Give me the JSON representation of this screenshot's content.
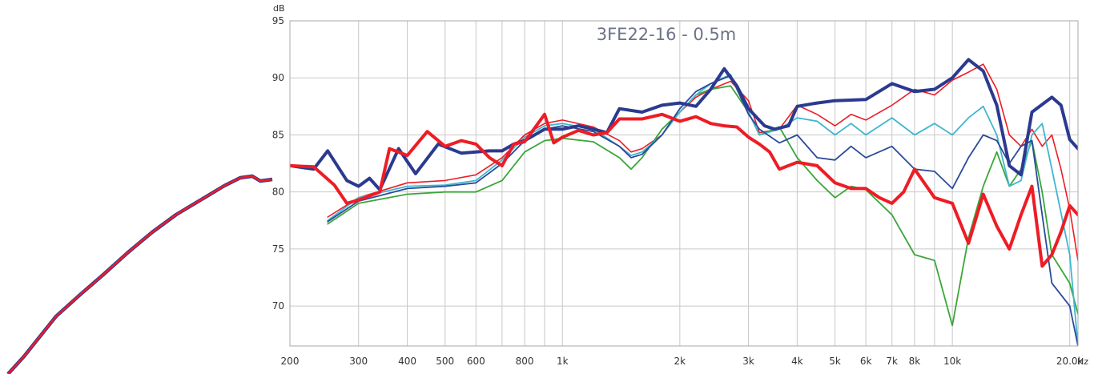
{
  "chart_data": {
    "type": "line",
    "title": "3FE22-16 - 0.5m",
    "xlabel": "Hz",
    "ylabel": "dB",
    "xscale": "log",
    "xlim": [
      200,
      21000
    ],
    "ylim": [
      66.5,
      95
    ],
    "grid": true,
    "x_ticks": [
      {
        "value": 200,
        "label": "200"
      },
      {
        "value": 300,
        "label": "300"
      },
      {
        "value": 400,
        "label": "400"
      },
      {
        "value": 500,
        "label": "500"
      },
      {
        "value": 600,
        "label": "600"
      },
      {
        "value": 800,
        "label": "800"
      },
      {
        "value": 1000,
        "label": "1k"
      },
      {
        "value": 2000,
        "label": "2k"
      },
      {
        "value": 3000,
        "label": "3k"
      },
      {
        "value": 4000,
        "label": "4k"
      },
      {
        "value": 5000,
        "label": "5k"
      },
      {
        "value": 6000,
        "label": "6k"
      },
      {
        "value": 7000,
        "label": "7k"
      },
      {
        "value": 8000,
        "label": "8k"
      },
      {
        "value": 10000,
        "label": "10k"
      },
      {
        "value": 20000,
        "label": "20.0k"
      }
    ],
    "y_ticks": [
      {
        "value": 70,
        "label": "70"
      },
      {
        "value": 75,
        "label": "75"
      },
      {
        "value": 80,
        "label": "80"
      },
      {
        "value": 85,
        "label": "85"
      },
      {
        "value": 90,
        "label": "90"
      },
      {
        "value": 95,
        "label": "95"
      }
    ],
    "colors": {
      "navy": "#2b3a8f",
      "red": "#ee1c25",
      "green": "#3aa63a",
      "cyan": "#3fb6d0",
      "blue": "#2b4a9a",
      "title": "#6d7389",
      "grid": "#c8c8c8"
    },
    "nearfield_offscale": [
      {
        "x": 10,
        "y": 467
      },
      {
        "x": 30,
        "y": 445
      },
      {
        "x": 50,
        "y": 420
      },
      {
        "x": 70,
        "y": 395
      },
      {
        "x": 100,
        "y": 368
      },
      {
        "x": 130,
        "y": 342
      },
      {
        "x": 160,
        "y": 315
      },
      {
        "x": 190,
        "y": 290
      },
      {
        "x": 220,
        "y": 268
      },
      {
        "x": 250,
        "y": 250
      },
      {
        "x": 280,
        "y": 232
      },
      {
        "x": 300,
        "y": 222
      },
      {
        "x": 315,
        "y": 220
      },
      {
        "x": 325,
        "y": 226
      },
      {
        "x": 340,
        "y": 224
      }
    ],
    "series": [
      {
        "color": "#2b3a8f",
        "width": 4,
        "points": [
          [
            200,
            82.3
          ],
          [
            230,
            82.0
          ],
          [
            250,
            83.6
          ],
          [
            280,
            81.0
          ],
          [
            300,
            80.5
          ],
          [
            320,
            81.2
          ],
          [
            340,
            80.2
          ],
          [
            380,
            83.8
          ],
          [
            420,
            81.6
          ],
          [
            480,
            84.2
          ],
          [
            550,
            83.4
          ],
          [
            600,
            83.5
          ],
          [
            650,
            83.6
          ],
          [
            700,
            83.6
          ],
          [
            750,
            84.2
          ],
          [
            800,
            84.5
          ],
          [
            900,
            85.5
          ],
          [
            1000,
            85.5
          ],
          [
            1100,
            85.8
          ],
          [
            1200,
            85.5
          ],
          [
            1300,
            85.2
          ],
          [
            1400,
            87.3
          ],
          [
            1600,
            87.0
          ],
          [
            1800,
            87.6
          ],
          [
            2000,
            87.8
          ],
          [
            2200,
            87.5
          ],
          [
            2400,
            89.0
          ],
          [
            2600,
            90.8
          ],
          [
            2800,
            89.3
          ],
          [
            3000,
            87.3
          ],
          [
            3300,
            85.8
          ],
          [
            3500,
            85.5
          ],
          [
            3800,
            85.8
          ],
          [
            4000,
            87.5
          ],
          [
            4500,
            87.8
          ],
          [
            5000,
            88.0
          ],
          [
            6000,
            88.1
          ],
          [
            7000,
            89.5
          ],
          [
            8000,
            88.8
          ],
          [
            9000,
            89.0
          ],
          [
            10000,
            90.0
          ],
          [
            11000,
            91.6
          ],
          [
            12000,
            90.6
          ],
          [
            13000,
            87.6
          ],
          [
            14000,
            82.3
          ],
          [
            15000,
            81.5
          ],
          [
            16000,
            87.0
          ],
          [
            18000,
            88.3
          ],
          [
            19000,
            87.6
          ],
          [
            20000,
            84.6
          ],
          [
            21000,
            83.8
          ]
        ]
      },
      {
        "color": "#ee1c25",
        "width": 4,
        "points": [
          [
            200,
            82.3
          ],
          [
            230,
            82.2
          ],
          [
            260,
            80.6
          ],
          [
            280,
            79.0
          ],
          [
            300,
            79.3
          ],
          [
            340,
            80.0
          ],
          [
            360,
            83.8
          ],
          [
            400,
            83.2
          ],
          [
            450,
            85.3
          ],
          [
            500,
            84.0
          ],
          [
            550,
            84.5
          ],
          [
            600,
            84.2
          ],
          [
            650,
            83.0
          ],
          [
            700,
            82.3
          ],
          [
            750,
            84.2
          ],
          [
            800,
            84.4
          ],
          [
            900,
            86.8
          ],
          [
            950,
            84.3
          ],
          [
            1000,
            84.8
          ],
          [
            1100,
            85.4
          ],
          [
            1200,
            85.0
          ],
          [
            1300,
            85.2
          ],
          [
            1400,
            86.4
          ],
          [
            1600,
            86.4
          ],
          [
            1800,
            86.8
          ],
          [
            2000,
            86.2
          ],
          [
            2200,
            86.6
          ],
          [
            2400,
            86.0
          ],
          [
            2600,
            85.8
          ],
          [
            2800,
            85.7
          ],
          [
            3000,
            84.8
          ],
          [
            3200,
            84.2
          ],
          [
            3400,
            83.5
          ],
          [
            3600,
            82.0
          ],
          [
            4000,
            82.6
          ],
          [
            4500,
            82.3
          ],
          [
            5000,
            80.8
          ],
          [
            5500,
            80.3
          ],
          [
            6000,
            80.3
          ],
          [
            6500,
            79.5
          ],
          [
            7000,
            79.0
          ],
          [
            7500,
            80.0
          ],
          [
            8000,
            82.0
          ],
          [
            9000,
            79.5
          ],
          [
            10000,
            79.0
          ],
          [
            11000,
            75.5
          ],
          [
            12000,
            79.8
          ],
          [
            13000,
            77.0
          ],
          [
            14000,
            75.0
          ],
          [
            15000,
            78.0
          ],
          [
            16000,
            80.5
          ],
          [
            17000,
            73.5
          ],
          [
            18000,
            74.5
          ],
          [
            19000,
            76.5
          ],
          [
            20000,
            78.8
          ],
          [
            21000,
            78.0
          ]
        ]
      },
      {
        "color": "#ee1c25",
        "width": 1.6,
        "points": [
          [
            250,
            77.8
          ],
          [
            300,
            79.5
          ],
          [
            400,
            80.8
          ],
          [
            500,
            81.0
          ],
          [
            600,
            81.5
          ],
          [
            700,
            83.0
          ],
          [
            800,
            85.0
          ],
          [
            900,
            86.0
          ],
          [
            1000,
            86.3
          ],
          [
            1200,
            85.7
          ],
          [
            1400,
            84.5
          ],
          [
            1500,
            83.5
          ],
          [
            1600,
            83.8
          ],
          [
            1800,
            85.0
          ],
          [
            2000,
            87.0
          ],
          [
            2200,
            88.3
          ],
          [
            2400,
            89.0
          ],
          [
            2700,
            89.7
          ],
          [
            3000,
            88.0
          ],
          [
            3200,
            85.2
          ],
          [
            3600,
            85.5
          ],
          [
            4000,
            87.6
          ],
          [
            4500,
            86.8
          ],
          [
            5000,
            85.8
          ],
          [
            5500,
            86.8
          ],
          [
            6000,
            86.3
          ],
          [
            7000,
            87.6
          ],
          [
            8000,
            89.0
          ],
          [
            9000,
            88.5
          ],
          [
            10000,
            89.8
          ],
          [
            11000,
            90.5
          ],
          [
            12000,
            91.2
          ],
          [
            13000,
            89.0
          ],
          [
            14000,
            85.0
          ],
          [
            15000,
            84.0
          ],
          [
            16000,
            85.5
          ],
          [
            17000,
            84.0
          ],
          [
            18000,
            85.0
          ],
          [
            19000,
            82.0
          ],
          [
            20000,
            78.5
          ],
          [
            21000,
            74.0
          ]
        ]
      },
      {
        "color": "#3aa63a",
        "width": 1.8,
        "points": [
          [
            250,
            77.2
          ],
          [
            300,
            79.0
          ],
          [
            400,
            79.8
          ],
          [
            500,
            80.0
          ],
          [
            600,
            80.0
          ],
          [
            700,
            81.0
          ],
          [
            800,
            83.5
          ],
          [
            900,
            84.5
          ],
          [
            1000,
            84.7
          ],
          [
            1200,
            84.4
          ],
          [
            1400,
            83.0
          ],
          [
            1500,
            82.0
          ],
          [
            1600,
            83.0
          ],
          [
            1800,
            85.5
          ],
          [
            2000,
            87.0
          ],
          [
            2200,
            88.5
          ],
          [
            2400,
            89.0
          ],
          [
            2700,
            89.3
          ],
          [
            3000,
            87.0
          ],
          [
            3200,
            85.0
          ],
          [
            3600,
            85.7
          ],
          [
            4000,
            83.0
          ],
          [
            4500,
            81.0
          ],
          [
            5000,
            79.5
          ],
          [
            5500,
            80.5
          ],
          [
            6000,
            80.2
          ],
          [
            7000,
            78.0
          ],
          [
            8000,
            74.5
          ],
          [
            9000,
            74.0
          ],
          [
            10000,
            68.3
          ],
          [
            11000,
            76.0
          ],
          [
            12000,
            80.5
          ],
          [
            13000,
            83.5
          ],
          [
            14000,
            80.5
          ],
          [
            15000,
            82.0
          ],
          [
            16000,
            84.5
          ],
          [
            17000,
            80.0
          ],
          [
            18000,
            74.5
          ],
          [
            20000,
            72.0
          ],
          [
            21000,
            69.3
          ]
        ]
      },
      {
        "color": "#3fb6d0",
        "width": 1.8,
        "points": [
          [
            250,
            77.5
          ],
          [
            300,
            79.5
          ],
          [
            400,
            80.5
          ],
          [
            500,
            80.6
          ],
          [
            600,
            81.0
          ],
          [
            700,
            82.8
          ],
          [
            800,
            84.8
          ],
          [
            900,
            85.8
          ],
          [
            1000,
            86.0
          ],
          [
            1200,
            85.5
          ],
          [
            1400,
            84.0
          ],
          [
            1500,
            83.2
          ],
          [
            1600,
            83.5
          ],
          [
            1800,
            85.0
          ],
          [
            2000,
            87.0
          ],
          [
            2200,
            88.5
          ],
          [
            2400,
            89.5
          ],
          [
            2700,
            90.3
          ],
          [
            3000,
            87.0
          ],
          [
            3200,
            85.0
          ],
          [
            3600,
            85.5
          ],
          [
            4000,
            86.5
          ],
          [
            4500,
            86.2
          ],
          [
            5000,
            85.0
          ],
          [
            5500,
            86.0
          ],
          [
            6000,
            85.0
          ],
          [
            7000,
            86.5
          ],
          [
            8000,
            85.0
          ],
          [
            9000,
            86.0
          ],
          [
            10000,
            85.0
          ],
          [
            11000,
            86.5
          ],
          [
            12000,
            87.5
          ],
          [
            13000,
            85.0
          ],
          [
            14000,
            80.5
          ],
          [
            15000,
            81.0
          ],
          [
            16000,
            85.0
          ],
          [
            17000,
            86.0
          ],
          [
            18000,
            82.0
          ],
          [
            20000,
            74.5
          ],
          [
            21000,
            66.5
          ]
        ]
      },
      {
        "color": "#2b4a9a",
        "width": 1.8,
        "points": [
          [
            250,
            77.4
          ],
          [
            300,
            79.2
          ],
          [
            400,
            80.3
          ],
          [
            500,
            80.5
          ],
          [
            600,
            80.8
          ],
          [
            700,
            82.5
          ],
          [
            800,
            84.5
          ],
          [
            900,
            85.5
          ],
          [
            1000,
            85.8
          ],
          [
            1200,
            85.3
          ],
          [
            1400,
            84.0
          ],
          [
            1500,
            83.0
          ],
          [
            1600,
            83.3
          ],
          [
            1800,
            85.0
          ],
          [
            2000,
            87.3
          ],
          [
            2200,
            88.8
          ],
          [
            2400,
            89.5
          ],
          [
            2700,
            90.2
          ],
          [
            3000,
            86.8
          ],
          [
            3200,
            85.5
          ],
          [
            3600,
            84.3
          ],
          [
            4000,
            85.0
          ],
          [
            4500,
            83.0
          ],
          [
            5000,
            82.8
          ],
          [
            5500,
            84.0
          ],
          [
            6000,
            83.0
          ],
          [
            7000,
            84.0
          ],
          [
            8000,
            82.0
          ],
          [
            9000,
            81.8
          ],
          [
            10000,
            80.3
          ],
          [
            11000,
            83.0
          ],
          [
            12000,
            85.0
          ],
          [
            13000,
            84.5
          ],
          [
            14000,
            82.5
          ],
          [
            15000,
            84.0
          ],
          [
            16000,
            84.5
          ],
          [
            17000,
            78.0
          ],
          [
            18000,
            72.0
          ],
          [
            20000,
            70.0
          ],
          [
            21000,
            66.5
          ]
        ]
      }
    ]
  }
}
